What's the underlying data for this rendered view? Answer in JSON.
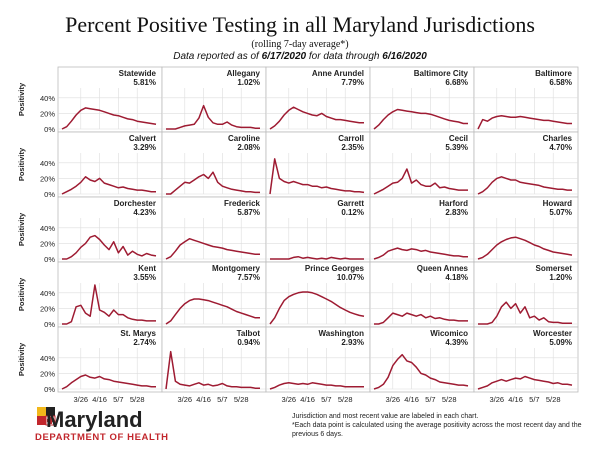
{
  "header": {
    "title": "Percent Positive Testing in all Maryland Jurisdictions",
    "subtitle": "(rolling 7-day average*)",
    "reported_prefix": "Data reported as of",
    "reported_date": "6/17/2020",
    "reported_mid": "for data through",
    "through_date": "6/16/2020"
  },
  "footer": {
    "logo_text": "Maryland",
    "dept_text": "DEPARTMENT OF HEALTH",
    "note1": "Jurisdiction and most recent value are labeled in each chart.",
    "note2": "*Each data point is calculated using the average positivity across the most recent day and the previous 6 days."
  },
  "colors": {
    "line": "#9e1b32",
    "grid": "#dddddd",
    "frame": "#bbbbbb"
  },
  "chart_data": {
    "type": "line",
    "title": "Percent Positive Testing in all Maryland Jurisdictions",
    "ylabel": "Positivity",
    "y_ticks": [
      "40%",
      "20%",
      "0%"
    ],
    "ylim": [
      0,
      50
    ],
    "x_ticks": [
      "3/26",
      "4/16",
      "5/7",
      "5/28"
    ],
    "x_tick_index": [
      4,
      8,
      12,
      16
    ],
    "layout": "5 columns x 5 rows of small multiples",
    "x_dates": [
      "3/10",
      "3/14",
      "3/19",
      "3/23",
      "3/26",
      "3/31",
      "4/4",
      "4/9",
      "4/16",
      "4/18",
      "4/23",
      "4/28",
      "5/7",
      "5/9",
      "5/14",
      "5/19",
      "5/28",
      "6/2",
      "6/7",
      "6/12",
      "6/16"
    ],
    "series": [
      {
        "name": "Statewide",
        "value": "5.81%",
        "values": [
          0,
          3,
          10,
          18,
          24,
          27,
          26,
          25,
          24,
          22,
          20,
          18,
          17,
          15,
          13,
          12,
          10,
          9,
          8,
          7,
          6
        ]
      },
      {
        "name": "Allegany",
        "value": "1.02%",
        "values": [
          0,
          0,
          0,
          2,
          4,
          5,
          6,
          14,
          30,
          15,
          8,
          6,
          6,
          9,
          5,
          3,
          2,
          2,
          2,
          1,
          1
        ]
      },
      {
        "name": "Anne Arundel",
        "value": "7.79%",
        "values": [
          0,
          4,
          10,
          18,
          24,
          28,
          25,
          22,
          20,
          18,
          17,
          20,
          16,
          14,
          12,
          12,
          11,
          10,
          9,
          8,
          8
        ]
      },
      {
        "name": "Baltimore City",
        "value": "6.68%",
        "values": [
          0,
          5,
          12,
          18,
          22,
          25,
          24,
          23,
          22,
          21,
          20,
          20,
          19,
          17,
          15,
          13,
          11,
          10,
          9,
          7,
          7
        ]
      },
      {
        "name": "Baltimore",
        "value": "6.58%",
        "values": [
          0,
          12,
          10,
          14,
          16,
          17,
          16,
          15,
          15,
          16,
          15,
          14,
          13,
          12,
          11,
          11,
          10,
          9,
          8,
          7,
          7
        ]
      },
      {
        "name": "Calvert",
        "value": "3.29%",
        "values": [
          0,
          3,
          6,
          10,
          15,
          22,
          18,
          16,
          20,
          14,
          12,
          10,
          8,
          9,
          7,
          6,
          5,
          5,
          4,
          3,
          3
        ]
      },
      {
        "name": "Caroline",
        "value": "2.08%",
        "values": [
          0,
          0,
          5,
          10,
          15,
          14,
          18,
          22,
          25,
          20,
          28,
          15,
          10,
          8,
          6,
          5,
          4,
          3,
          3,
          2,
          2
        ]
      },
      {
        "name": "Carroll",
        "value": "2.35%",
        "values": [
          0,
          45,
          20,
          16,
          14,
          16,
          14,
          12,
          12,
          10,
          10,
          8,
          9,
          7,
          6,
          5,
          4,
          4,
          3,
          3,
          2
        ]
      },
      {
        "name": "Cecil",
        "value": "5.39%",
        "values": [
          0,
          3,
          6,
          10,
          14,
          15,
          20,
          32,
          14,
          18,
          12,
          10,
          10,
          14,
          8,
          9,
          7,
          6,
          5,
          5,
          5
        ]
      },
      {
        "name": "Charles",
        "value": "4.70%",
        "values": [
          0,
          3,
          8,
          15,
          20,
          22,
          20,
          18,
          18,
          15,
          14,
          13,
          12,
          11,
          9,
          8,
          7,
          6,
          6,
          5,
          5
        ]
      },
      {
        "name": "Dorchester",
        "value": "4.23%",
        "values": [
          0,
          0,
          3,
          8,
          15,
          20,
          28,
          30,
          25,
          18,
          12,
          22,
          8,
          16,
          5,
          10,
          6,
          4,
          7,
          5,
          4
        ]
      },
      {
        "name": "Frederick",
        "value": "5.87%",
        "values": [
          0,
          3,
          10,
          18,
          22,
          26,
          24,
          22,
          20,
          18,
          16,
          15,
          14,
          12,
          11,
          10,
          9,
          8,
          7,
          6,
          6
        ]
      },
      {
        "name": "Garrett",
        "value": "0.12%",
        "values": [
          0,
          0,
          0,
          0,
          0,
          2,
          3,
          1,
          2,
          1,
          0,
          1,
          0,
          2,
          1,
          0,
          1,
          0,
          0,
          0,
          0
        ]
      },
      {
        "name": "Harford",
        "value": "2.83%",
        "values": [
          0,
          2,
          5,
          10,
          12,
          14,
          12,
          11,
          13,
          12,
          10,
          11,
          9,
          8,
          7,
          6,
          5,
          4,
          4,
          3,
          3
        ]
      },
      {
        "name": "Howard",
        "value": "5.07%",
        "values": [
          0,
          2,
          6,
          12,
          18,
          22,
          25,
          27,
          28,
          26,
          24,
          21,
          18,
          16,
          13,
          11,
          9,
          8,
          7,
          6,
          5
        ]
      },
      {
        "name": "Kent",
        "value": "3.55%",
        "values": [
          0,
          0,
          3,
          22,
          24,
          14,
          10,
          50,
          18,
          15,
          10,
          18,
          12,
          12,
          8,
          6,
          5,
          5,
          4,
          4,
          4
        ]
      },
      {
        "name": "Montgomery",
        "value": "7.57%",
        "values": [
          0,
          4,
          12,
          20,
          26,
          30,
          32,
          32,
          31,
          30,
          28,
          26,
          24,
          22,
          19,
          16,
          14,
          12,
          10,
          8,
          8
        ]
      },
      {
        "name": "Prince Georges",
        "value": "10.07%",
        "values": [
          0,
          8,
          20,
          30,
          35,
          38,
          40,
          41,
          41,
          40,
          38,
          35,
          32,
          29,
          25,
          21,
          18,
          15,
          13,
          11,
          10
        ]
      },
      {
        "name": "Queen Annes",
        "value": "4.18%",
        "values": [
          0,
          0,
          2,
          8,
          14,
          12,
          10,
          14,
          12,
          10,
          12,
          8,
          10,
          7,
          8,
          6,
          5,
          5,
          4,
          4,
          4
        ]
      },
      {
        "name": "Somerset",
        "value": "1.20%",
        "values": [
          0,
          0,
          0,
          2,
          10,
          22,
          28,
          20,
          26,
          14,
          22,
          8,
          10,
          5,
          8,
          3,
          2,
          2,
          1,
          1,
          1
        ]
      },
      {
        "name": "St. Marys",
        "value": "2.74%",
        "values": [
          0,
          3,
          8,
          12,
          16,
          18,
          15,
          14,
          16,
          13,
          12,
          10,
          9,
          8,
          7,
          6,
          5,
          4,
          4,
          3,
          3
        ]
      },
      {
        "name": "Talbot",
        "value": "0.94%",
        "values": [
          0,
          48,
          10,
          6,
          5,
          4,
          6,
          8,
          5,
          6,
          4,
          5,
          7,
          4,
          3,
          3,
          2,
          2,
          2,
          1,
          1
        ]
      },
      {
        "name": "Washington",
        "value": "2.93%",
        "values": [
          0,
          2,
          5,
          7,
          8,
          7,
          6,
          7,
          6,
          8,
          7,
          6,
          5,
          5,
          4,
          4,
          3,
          3,
          3,
          3,
          3
        ]
      },
      {
        "name": "Wicomico",
        "value": "4.39%",
        "values": [
          0,
          2,
          6,
          15,
          30,
          38,
          44,
          36,
          34,
          28,
          20,
          18,
          14,
          12,
          9,
          8,
          7,
          6,
          5,
          5,
          4
        ]
      },
      {
        "name": "Worcester",
        "value": "5.09%",
        "values": [
          0,
          2,
          4,
          8,
          10,
          12,
          10,
          12,
          14,
          13,
          16,
          14,
          12,
          11,
          10,
          9,
          7,
          8,
          6,
          6,
          5
        ]
      }
    ]
  }
}
